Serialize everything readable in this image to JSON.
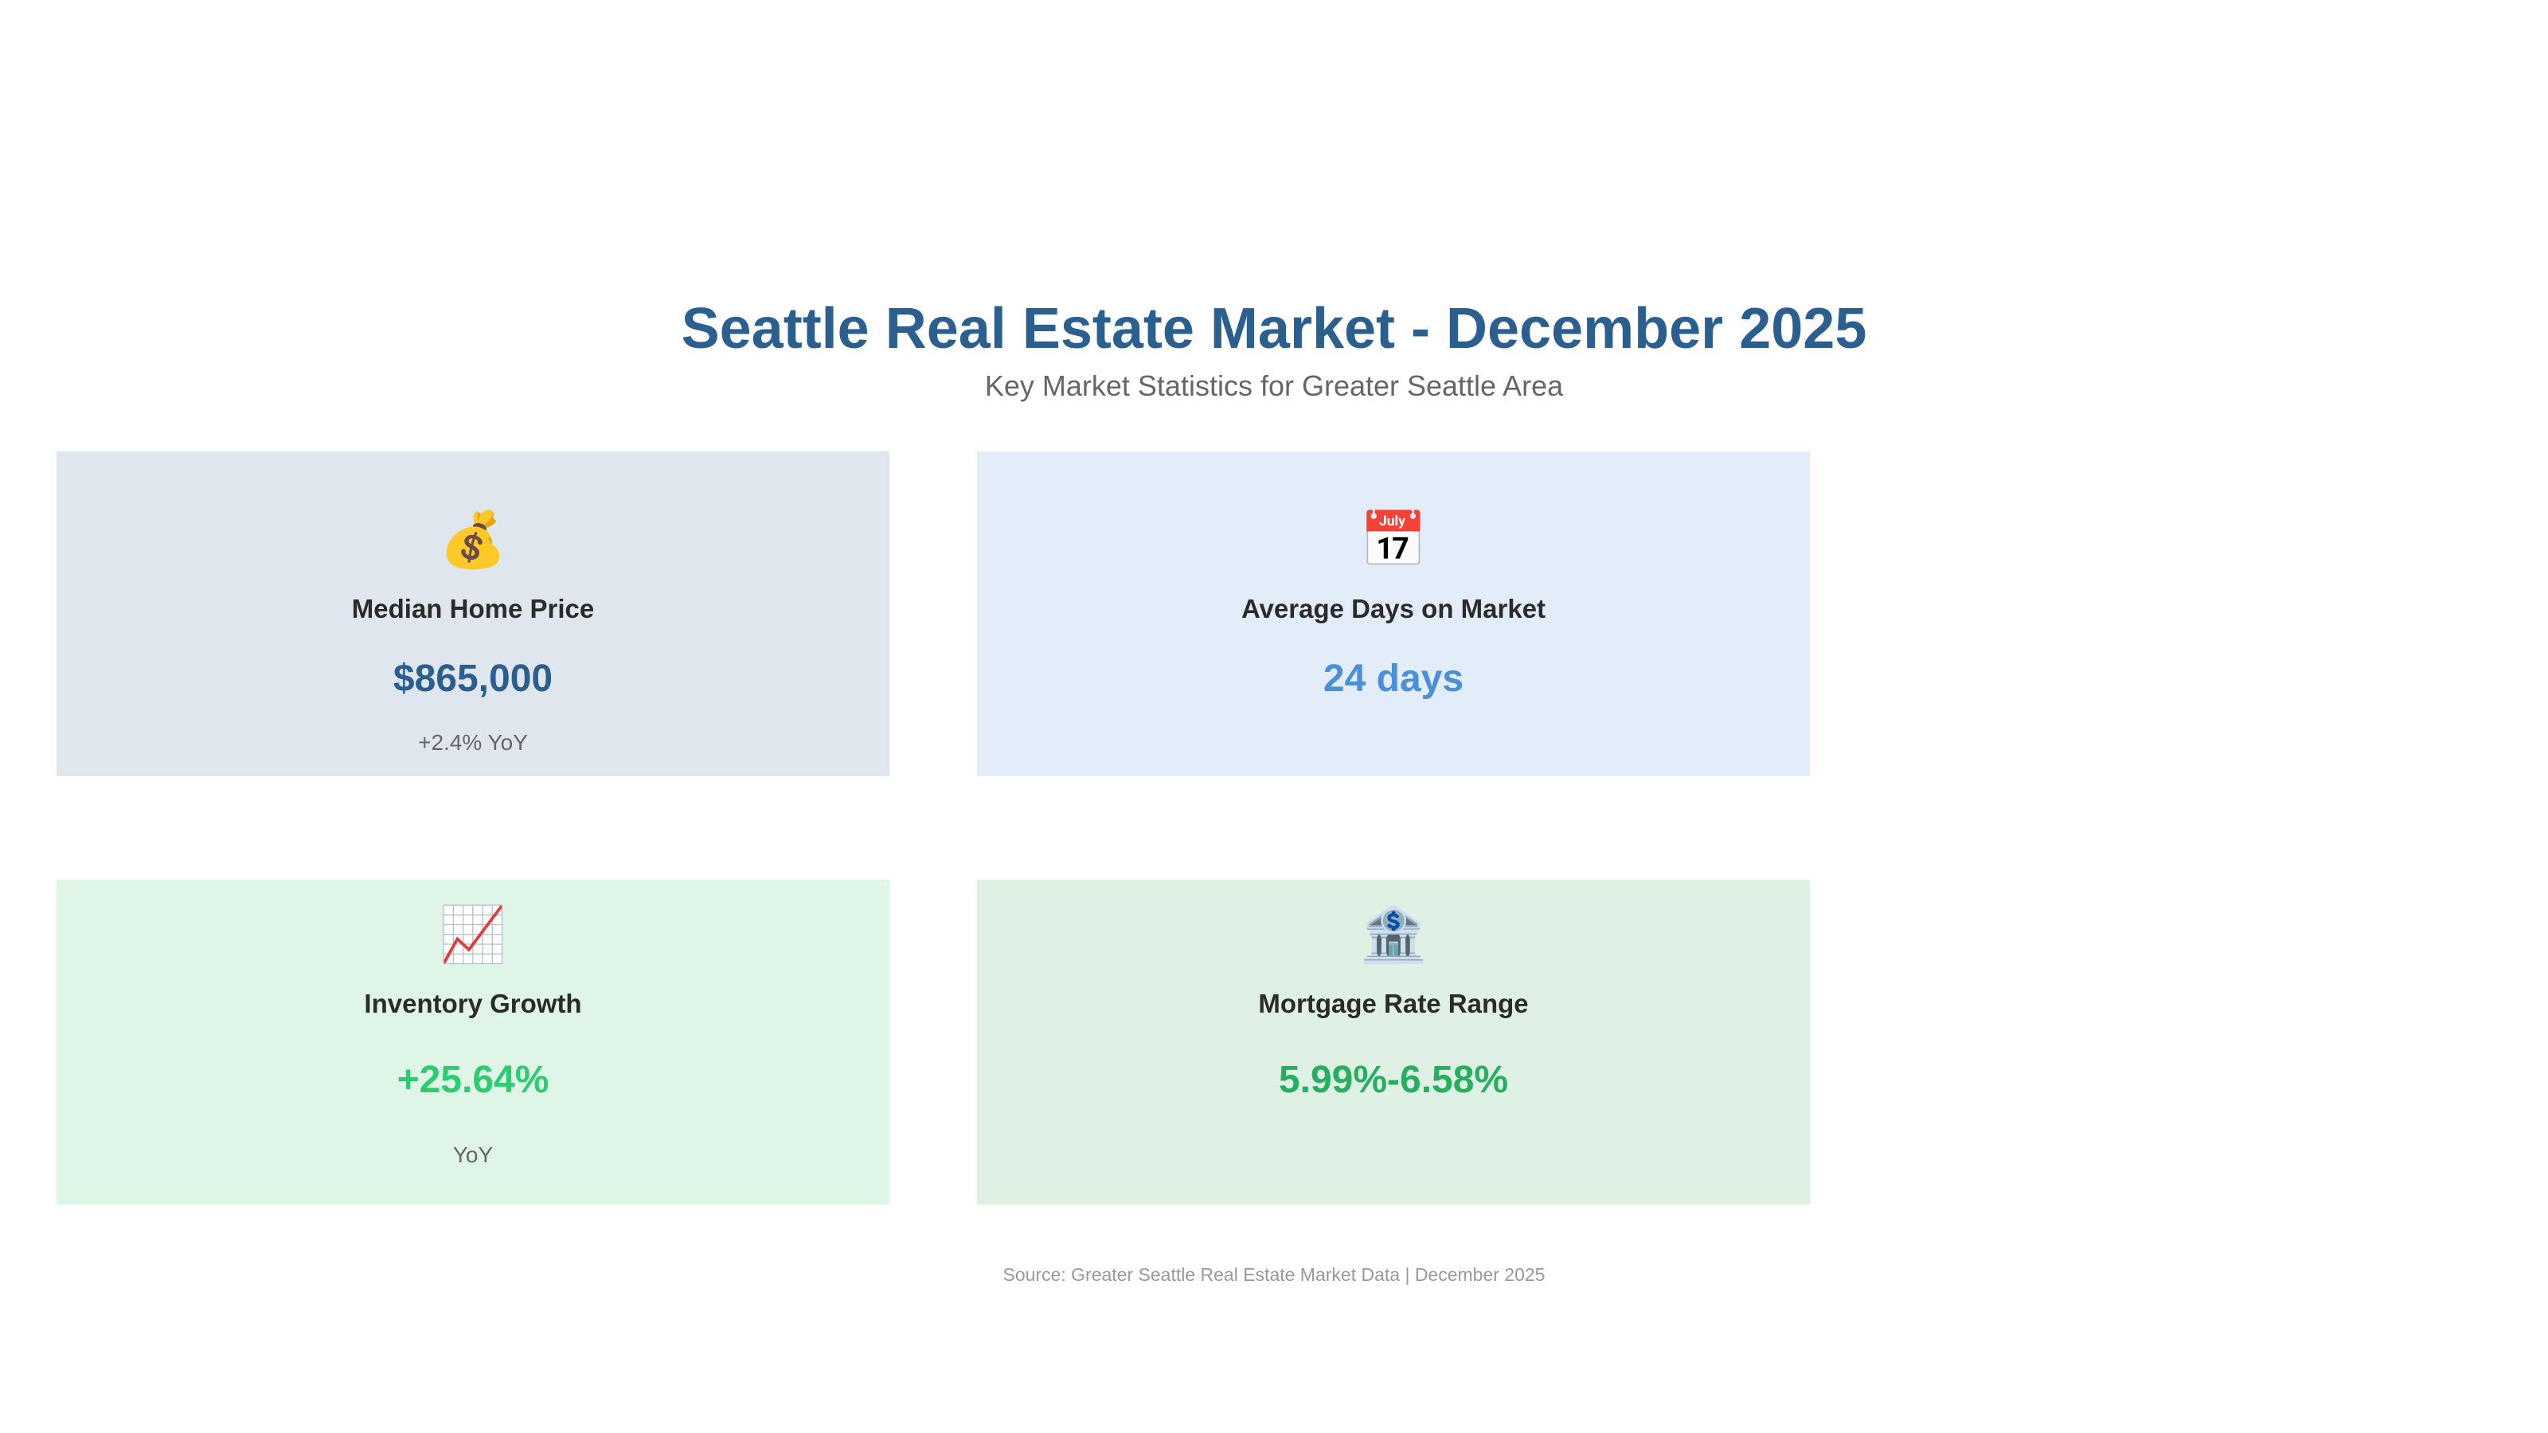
{
  "header": {
    "title": "Seattle Real Estate Market - December 2025",
    "subtitle": "Key Market Statistics for Greater Seattle Area"
  },
  "cards": [
    {
      "icon": "money-bag-icon",
      "glyph": "💰",
      "label": "Median Home Price",
      "value": "$865,000",
      "note": "+2.4% YoY",
      "background": "#dfe6ee",
      "value_color": "#2a5f8f"
    },
    {
      "icon": "calendar-icon",
      "glyph": "📅",
      "label": "Average Days on Market",
      "value": "24 days",
      "note": "",
      "background": "#e3edf9",
      "value_color": "#4a90d9"
    },
    {
      "icon": "chart-increasing-icon",
      "glyph": "📈",
      "label": "Inventory Growth",
      "value": "+25.64%",
      "note": "YoY",
      "background": "#dff5e8",
      "value_color": "#2ecc71"
    },
    {
      "icon": "bank-icon",
      "glyph": "🏦",
      "label": "Mortgage Rate Range",
      "value": "5.99%-6.58%",
      "note": "",
      "background": "#dff0e4",
      "value_color": "#27ae60"
    }
  ],
  "footer": {
    "source": "Source: Greater Seattle Real Estate Market Data | December 2025"
  }
}
